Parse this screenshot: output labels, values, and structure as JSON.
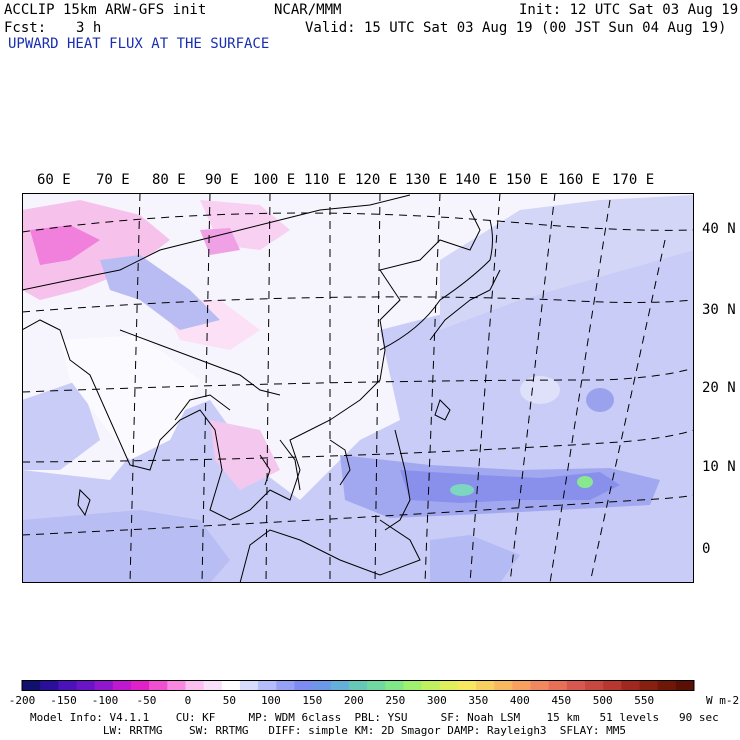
{
  "header": {
    "model": "ACCLIP 15km ARW-GFS init",
    "org": "NCAR/MMM",
    "init": "Init: 12 UTC Sat 03 Aug 19",
    "fcst_label": "Fcst:",
    "fcst_value": "3 h",
    "valid": "Valid: 15 UTC Sat 03 Aug 19 (00 JST Sun 04 Aug 19)",
    "field_title": "UPWARD HEAT FLUX AT THE SURFACE"
  },
  "map": {
    "lon_labels": [
      "60 E",
      "70 E",
      "80 E",
      "90 E",
      "100 E",
      "110 E",
      "120 E",
      "130 E",
      "140 E",
      "150 E",
      "160 E",
      "170 E"
    ],
    "lat_labels": [
      "40 N",
      "30 N",
      "20 N",
      "10 N",
      "0"
    ]
  },
  "colorbar": {
    "ticks": [
      "-200",
      "-150",
      "-100",
      "-50",
      "0",
      "50",
      "100",
      "150",
      "200",
      "250",
      "300",
      "350",
      "400",
      "450",
      "500",
      "550"
    ],
    "units": "W m-2",
    "colors": [
      "#10106e",
      "#2a0f9a",
      "#4a12b8",
      "#6a14c8",
      "#9016d0",
      "#c018d0",
      "#e020c8",
      "#f050d0",
      "#f888e0",
      "#fcc0f0",
      "#f8e0f8",
      "#ffffff",
      "#d8dcfc",
      "#b4bcfa",
      "#96a0f4",
      "#7c8cf0",
      "#6c98e8",
      "#64b0d8",
      "#68c8b8",
      "#70d8a0",
      "#80e888",
      "#a0f070",
      "#c0f060",
      "#e0f05c",
      "#f8e860",
      "#f8d060",
      "#f8b860",
      "#f8a060",
      "#f08860",
      "#e87058",
      "#d85850",
      "#c84840",
      "#b83830",
      "#a02820",
      "#882010",
      "#701808",
      "#5a1004"
    ]
  },
  "footer": {
    "line1": "Model Info: V4.1.1    CU: KF     MP: WDM 6class  PBL: YSU     SF: Noah LSM    15 km   51 levels   90 sec",
    "line2": "           LW: RRTMG    SW: RRTMG   DIFF: simple KM: 2D Smagor DAMP: Rayleigh3  SFLAY: MM5"
  }
}
